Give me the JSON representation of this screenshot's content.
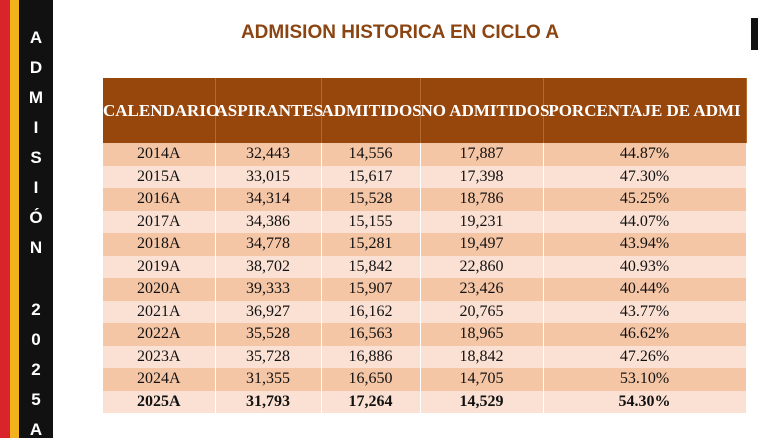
{
  "sidebar": {
    "letters": [
      "A",
      "D",
      "M",
      "I",
      "S",
      "I",
      "Ó",
      "N",
      "2",
      "0",
      "2",
      "5",
      "A"
    ]
  },
  "header": {
    "title": "ADMISION HISTORICA EN CICLO A"
  },
  "table": {
    "columns": [
      "CALENDARIO",
      "ASPIRANTES",
      "ADMITIDOS",
      "NO ADMITIDOS",
      "PORCENTAJE DE ADMI"
    ],
    "rows": [
      [
        "2014A",
        "32,443",
        "14,556",
        "17,887",
        "44.87%"
      ],
      [
        "2015A",
        "33,015",
        "15,617",
        "17,398",
        "47.30%"
      ],
      [
        "2016A",
        "34,314",
        "15,528",
        "18,786",
        "45.25%"
      ],
      [
        "2017A",
        "34,386",
        "15,155",
        "19,231",
        "44.07%"
      ],
      [
        "2018A",
        "34,778",
        "15,281",
        "19,497",
        "43.94%"
      ],
      [
        "2019A",
        "38,702",
        "15,842",
        "22,860",
        "40.93%"
      ],
      [
        "2020A",
        "39,333",
        "15,907",
        "23,426",
        "40.44%"
      ],
      [
        "2021A",
        "36,927",
        "16,162",
        "20,765",
        "43.77%"
      ],
      [
        "2022A",
        "35,528",
        "16,563",
        "18,965",
        "46.62%"
      ],
      [
        "2023A",
        "35,728",
        "16,886",
        "18,842",
        "47.26%"
      ],
      [
        "2024A",
        "31,355",
        "16,650",
        "14,705",
        "53.10%"
      ],
      [
        "2025A",
        "31,793",
        "17,264",
        "14,529",
        "54.30%"
      ]
    ]
  }
}
